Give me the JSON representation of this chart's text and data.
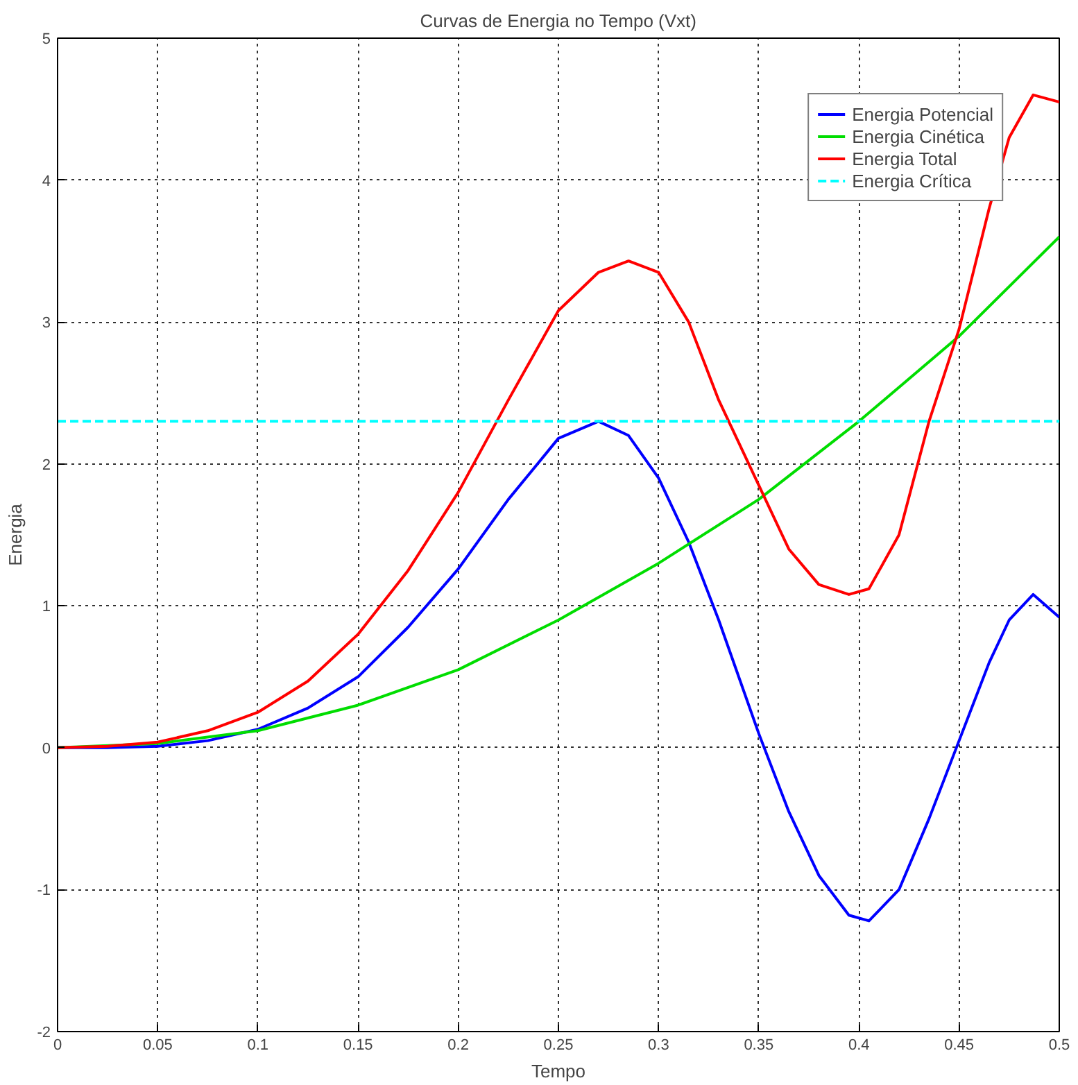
{
  "chart_data": {
    "type": "line",
    "title": "Curvas de Energia no Tempo (Vxt)",
    "xlabel": "Tempo",
    "ylabel": "Energia",
    "xlim": [
      0,
      0.5
    ],
    "ylim": [
      -2,
      5
    ],
    "xticks": [
      0,
      0.05,
      0.1,
      0.15,
      0.2,
      0.25,
      0.3,
      0.35,
      0.4,
      0.45,
      0.5
    ],
    "yticks": [
      -2,
      -1,
      0,
      1,
      2,
      3,
      4,
      5
    ],
    "grid": true,
    "legend": "top right",
    "line_style": "solid",
    "marker": "none",
    "series": [
      {
        "name": "Energia Potencial",
        "color": "#0000ff",
        "x": [
          0,
          0.025,
          0.05,
          0.075,
          0.1,
          0.125,
          0.15,
          0.175,
          0.2,
          0.225,
          0.25,
          0.27,
          0.285,
          0.3,
          0.315,
          0.33,
          0.35,
          0.365,
          0.38,
          0.395,
          0.405,
          0.42,
          0.435,
          0.45,
          0.465,
          0.475,
          0.487,
          0.5
        ],
        "values": [
          0,
          0,
          0.01,
          0.05,
          0.13,
          0.28,
          0.5,
          0.85,
          1.26,
          1.75,
          2.18,
          2.3,
          2.2,
          1.9,
          1.45,
          0.9,
          0.1,
          -0.45,
          -0.9,
          -1.18,
          -1.22,
          -1.0,
          -0.5,
          0.05,
          0.6,
          0.9,
          1.08,
          0.92
        ]
      },
      {
        "name": "Energia Cinética",
        "color": "#00dd00",
        "x": [
          0,
          0.05,
          0.1,
          0.15,
          0.2,
          0.25,
          0.3,
          0.35,
          0.4,
          0.45,
          0.5
        ],
        "values": [
          0,
          0.03,
          0.12,
          0.3,
          0.55,
          0.9,
          1.3,
          1.75,
          2.3,
          2.9,
          3.6
        ]
      },
      {
        "name": "Energia Total",
        "color": "#ff0000",
        "x": [
          0,
          0.025,
          0.05,
          0.075,
          0.1,
          0.125,
          0.15,
          0.175,
          0.2,
          0.225,
          0.25,
          0.27,
          0.285,
          0.3,
          0.315,
          0.33,
          0.35,
          0.365,
          0.38,
          0.395,
          0.405,
          0.42,
          0.435,
          0.45,
          0.465,
          0.475,
          0.487,
          0.5
        ],
        "values": [
          0,
          0.01,
          0.04,
          0.12,
          0.25,
          0.47,
          0.8,
          1.25,
          1.8,
          2.45,
          3.08,
          3.35,
          3.43,
          3.35,
          3.0,
          2.45,
          1.85,
          1.4,
          1.15,
          1.08,
          1.12,
          1.5,
          2.3,
          2.95,
          3.8,
          4.3,
          4.6,
          4.55
        ]
      },
      {
        "name": "Energia Crítica",
        "color": "#00ffff",
        "line_style": "dashed",
        "x": [
          0,
          0.5
        ],
        "values": [
          2.3,
          2.3
        ]
      }
    ]
  }
}
